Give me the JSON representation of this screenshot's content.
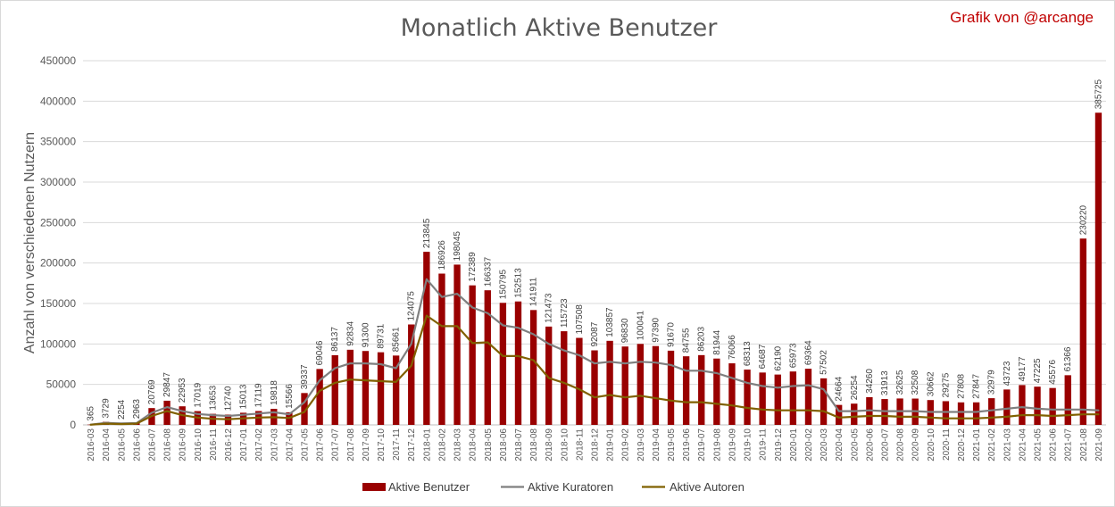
{
  "chart_data": {
    "type": "bar",
    "title": "Monatlich Aktive Benutzer",
    "credit": "Grafik von @arcange",
    "xlabel": "",
    "ylabel": "Anzahl von verschiedenen Nutzern",
    "ylim": [
      0,
      450000
    ],
    "yticks": [
      "0",
      "50000",
      "100000",
      "150000",
      "200000",
      "250000",
      "300000",
      "350000",
      "400000",
      "450000"
    ],
    "grid": true,
    "legend_position": "bottom",
    "colors": {
      "bars": "#990000",
      "curators": "#7f7f7f",
      "authors": "#806000"
    },
    "categories": [
      "2016-03",
      "2016-04",
      "2016-05",
      "2016-06",
      "2016-07",
      "2016-08",
      "2016-09",
      "2016-10",
      "2016-11",
      "2016-12",
      "2017-01",
      "2017-02",
      "2017-03",
      "2017-04",
      "2017-05",
      "2017-06",
      "2017-07",
      "2017-08",
      "2017-09",
      "2017-10",
      "2017-11",
      "2017-12",
      "2018-01",
      "2018-02",
      "2018-03",
      "2018-04",
      "2018-05",
      "2018-06",
      "2018-07",
      "2018-08",
      "2018-09",
      "2018-10",
      "2018-11",
      "2018-12",
      "2019-01",
      "2019-02",
      "2019-03",
      "2019-04",
      "2019-05",
      "2019-06",
      "2019-07",
      "2019-08",
      "2019-09",
      "2019-10",
      "2019-11",
      "2019-12",
      "2020-01",
      "2020-02",
      "2020-03",
      "2020-04",
      "2020-05",
      "2020-06",
      "2020-07",
      "2020-08",
      "2020-09",
      "2020-10",
      "2020-11",
      "2020-12",
      "2021-01",
      "2021-02",
      "2021-03",
      "2021-04",
      "2021-05",
      "2021-06",
      "2021-07",
      "2021-08",
      "2021-09"
    ],
    "series": [
      {
        "name": "Aktive Benutzer",
        "type": "bar",
        "values": [
          365,
          3729,
          2254,
          2963,
          20769,
          29847,
          22953,
          17019,
          13653,
          12740,
          15013,
          17119,
          19818,
          15566,
          39337,
          69046,
          86137,
          92834,
          91300,
          89731,
          85661,
          124075,
          213845,
          186926,
          198045,
          172389,
          166337,
          150795,
          152513,
          141911,
          121473,
          115723,
          107508,
          92087,
          103857,
          96830,
          100041,
          97390,
          91670,
          84755,
          86203,
          81944,
          76066,
          68313,
          64687,
          62190,
          65973,
          69364,
          57502,
          24664,
          26254,
          34260,
          31913,
          32625,
          32508,
          30662,
          29275,
          27808,
          27847,
          32979,
          43723,
          49177,
          47225,
          45576,
          61366,
          230220,
          385725
        ]
      },
      {
        "name": "Aktive Kuratoren",
        "type": "line",
        "values": [
          300,
          2500,
          1800,
          2200,
          15000,
          22000,
          17000,
          13500,
          12000,
          11000,
          12500,
          14000,
          15500,
          13000,
          28000,
          55000,
          70000,
          76000,
          76000,
          75000,
          70000,
          100000,
          180000,
          158000,
          162000,
          145000,
          138000,
          123000,
          120000,
          112000,
          100000,
          92000,
          86000,
          76000,
          78000,
          76000,
          78000,
          77000,
          74000,
          67000,
          67000,
          64000,
          58000,
          52000,
          48000,
          46000,
          48000,
          49000,
          44000,
          17000,
          17000,
          18000,
          17000,
          17000,
          17000,
          16000,
          16000,
          16000,
          16000,
          18000,
          20000,
          22000,
          20000,
          19000,
          19000,
          19000,
          18000
        ]
      },
      {
        "name": "Aktive Autoren",
        "type": "line",
        "values": [
          250,
          1500,
          1000,
          1500,
          11000,
          17000,
          12000,
          9000,
          7500,
          7000,
          8000,
          9000,
          9500,
          8500,
          16000,
          42000,
          52000,
          56000,
          55000,
          54000,
          53000,
          73000,
          135000,
          122000,
          122000,
          101000,
          102000,
          85000,
          85000,
          80000,
          58000,
          52000,
          44000,
          34000,
          37000,
          34000,
          36000,
          33000,
          30000,
          28000,
          28000,
          26000,
          24000,
          21000,
          19000,
          18000,
          18000,
          18000,
          17000,
          9000,
          10000,
          11000,
          11000,
          10000,
          10000,
          9000,
          8000,
          8000,
          8000,
          9000,
          10000,
          12000,
          12000,
          11000,
          12000,
          13000,
          13000
        ]
      }
    ]
  }
}
